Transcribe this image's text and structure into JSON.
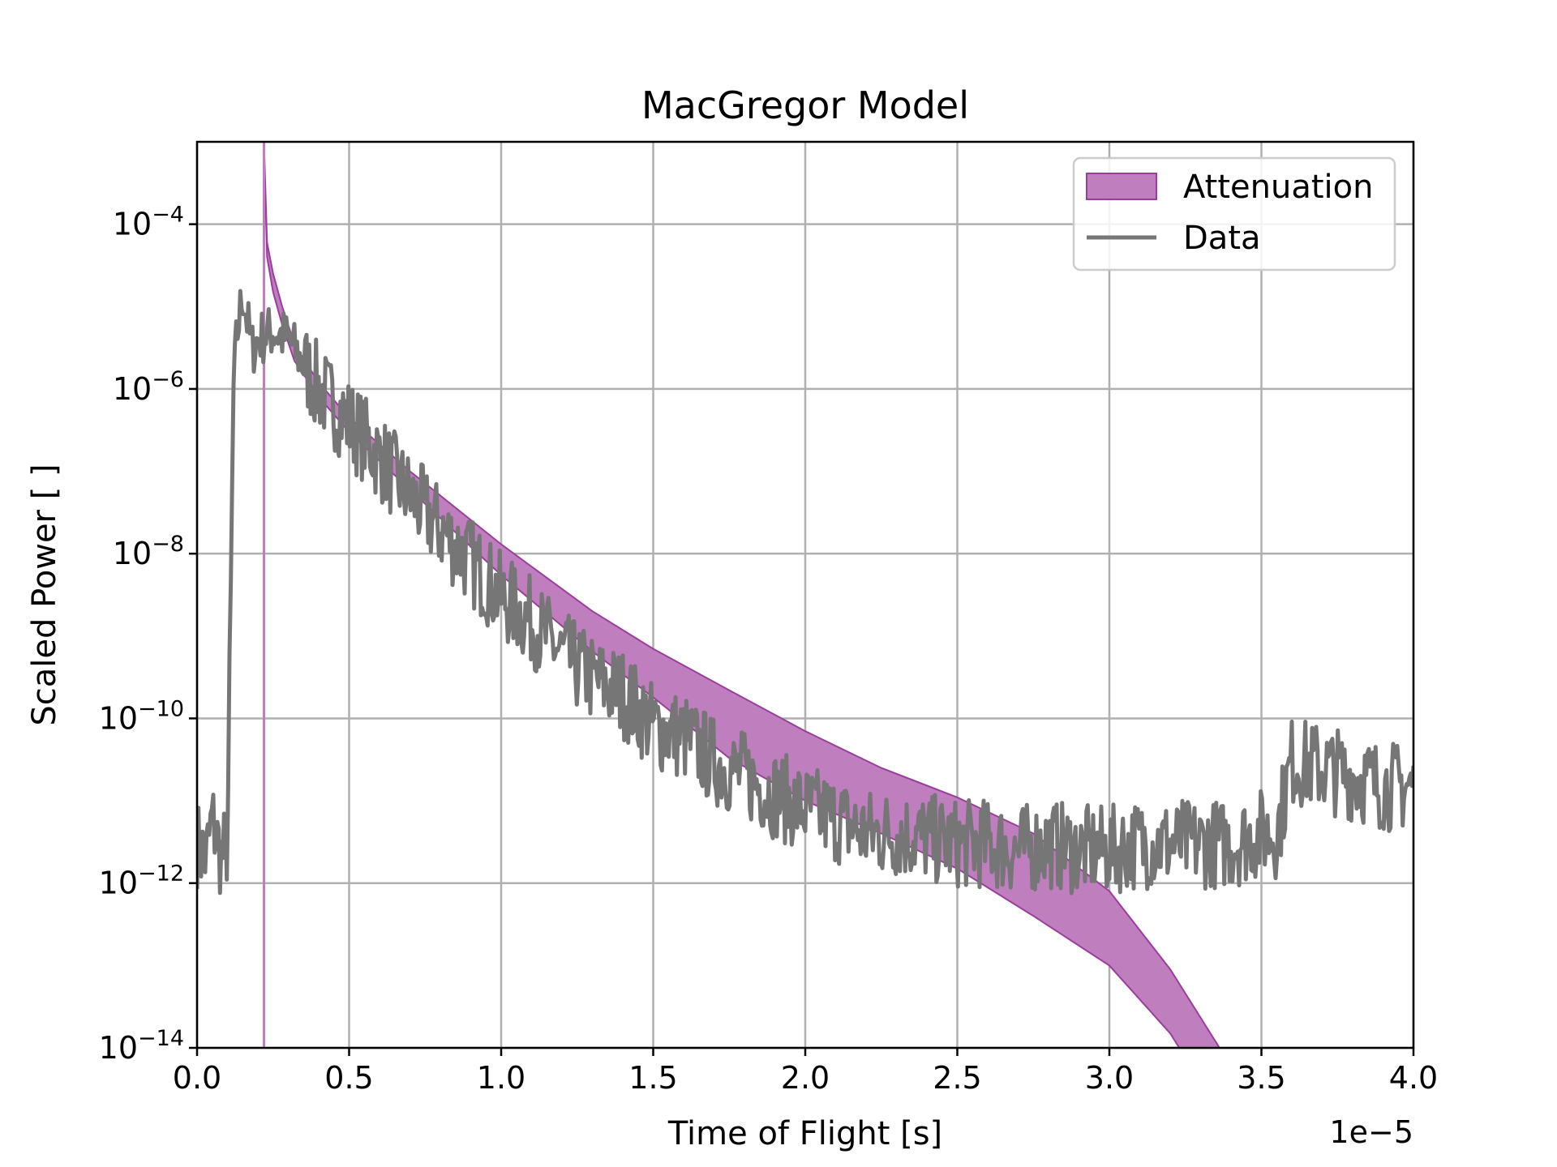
{
  "chart_data": {
    "type": "area",
    "title": "MacGregor Model",
    "xlabel": "Time of Flight [s]",
    "ylabel": "Scaled Power [ ]",
    "x_offset_label": "1e−5",
    "x_scale": 1e-05,
    "xlim": [
      0.0,
      4.0
    ],
    "ylim_exponent": [
      -14,
      -3
    ],
    "yscale": "log",
    "grid": true,
    "legend_position": "top-right",
    "x_ticks": [
      "0.0",
      "0.5",
      "1.0",
      "1.5",
      "2.0",
      "2.5",
      "3.0",
      "3.5",
      "4.0"
    ],
    "y_ticks": [
      {
        "base": "10",
        "exp": "−4",
        "value": 0.0001
      },
      {
        "base": "10",
        "exp": "−6",
        "value": 1e-06
      },
      {
        "base": "10",
        "exp": "−8",
        "value": 1e-08
      },
      {
        "base": "10",
        "exp": "−10",
        "value": 1e-10
      },
      {
        "base": "10",
        "exp": "−12",
        "value": 1e-12
      },
      {
        "base": "10",
        "exp": "−14",
        "value": 1e-14
      }
    ],
    "colors": {
      "attenuation_fill": "#bf7fbf",
      "attenuation_edge": "#9c3d9c",
      "data_line": "#767676",
      "grid": "#b0b0b0"
    },
    "series": [
      {
        "name": "Attenuation",
        "kind": "band",
        "x": [
          0.22,
          0.23,
          0.25,
          0.28,
          0.32,
          0.4,
          0.5,
          0.7,
          1.0,
          1.3,
          1.5,
          1.75,
          2.0,
          2.25,
          2.5,
          2.75,
          3.0,
          3.2,
          3.4,
          3.56
        ],
        "upper": [
          0.001,
          6e-05,
          2.5e-05,
          1e-05,
          3.5e-06,
          1.2e-06,
          4.5e-07,
          1e-07,
          1.3e-08,
          2e-09,
          7e-10,
          2.2e-10,
          7e-11,
          2.5e-11,
          1.1e-11,
          4e-12,
          8e-13,
          9e-14,
          6e-15,
          1e-14
        ],
        "lower": [
          0.001,
          4e-05,
          1.5e-05,
          6e-06,
          2.2e-06,
          8e-07,
          3e-07,
          6e-08,
          5.5e-09,
          6.5e-10,
          1.8e-10,
          3.3e-11,
          1e-11,
          4e-12,
          1.5e-12,
          4e-13,
          1e-13,
          1.5e-14,
          1e-15,
          1e-15
        ],
        "vertical_line_x": 0.22
      },
      {
        "name": "Data",
        "kind": "line",
        "x": [
          0.0,
          0.03,
          0.05,
          0.08,
          0.1,
          0.12,
          0.13,
          0.15,
          0.18,
          0.2,
          0.25,
          0.3,
          0.35,
          0.4,
          0.5,
          0.6,
          0.7,
          0.8,
          0.9,
          1.0,
          1.1,
          1.2,
          1.3,
          1.4,
          1.5,
          1.6,
          1.7,
          1.8,
          1.9,
          2.0,
          2.1,
          2.2,
          2.3,
          2.4,
          2.5,
          2.6,
          2.7,
          2.8,
          2.9,
          3.0,
          3.1,
          3.2,
          3.3,
          3.4,
          3.5,
          3.55,
          3.6,
          3.7,
          3.8,
          3.9,
          4.0
        ],
        "y": [
          3e-12,
          2e-12,
          6e-12,
          2e-12,
          3e-12,
          1e-06,
          4e-06,
          1.5e-05,
          3e-06,
          4e-06,
          5e-06,
          4e-06,
          2e-06,
          1e-06,
          4e-07,
          1.5e-07,
          5e-08,
          2e-08,
          8e-09,
          3e-09,
          1.5e-09,
          6e-10,
          3e-10,
          2e-10,
          8e-11,
          6e-11,
          3e-11,
          2e-11,
          1.2e-11,
          8e-12,
          6e-12,
          4e-12,
          4e-12,
          3.5e-12,
          3e-12,
          3e-12,
          2.5e-12,
          3e-12,
          2.5e-12,
          2.5e-12,
          3e-12,
          3e-12,
          3e-12,
          3e-12,
          4e-12,
          4e-12,
          3e-11,
          2.5e-11,
          2e-11,
          1.5e-11,
          1.5e-11
        ]
      }
    ]
  }
}
